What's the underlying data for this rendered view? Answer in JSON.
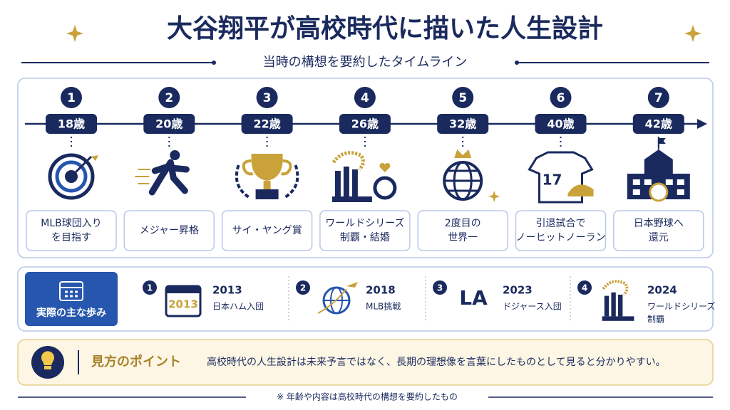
{
  "header": {
    "title": "大谷翔平が高校時代に描いた人生設計",
    "subtitle": "当時の構想を要約したタイムライン"
  },
  "timeline": {
    "steps": [
      {
        "number": 1,
        "age": "18歳",
        "label": [
          "MLB球団入り",
          "を目指す"
        ]
      },
      {
        "number": 2,
        "age": "20歳",
        "label": [
          "メジャー昇格"
        ]
      },
      {
        "number": 3,
        "age": "22歳",
        "label": [
          "サイ・ヤング賞"
        ]
      },
      {
        "number": 4,
        "age": "26歳",
        "label": [
          "ワールドシリーズ",
          "制覇・結婚"
        ]
      },
      {
        "number": 5,
        "age": "32歳",
        "label": [
          "2度目の",
          "世界一"
        ]
      },
      {
        "number": 6,
        "age": "40歳",
        "label": [
          "引退試合で",
          "ノーヒットノーラン"
        ],
        "icon_text": "17"
      },
      {
        "number": 7,
        "age": "42歳",
        "label": [
          "日本野球へ",
          "還元"
        ]
      }
    ]
  },
  "actual": {
    "title": "実際の主な歩み",
    "items": [
      {
        "number": 1,
        "year": "2013",
        "text": [
          "日本ハム入団"
        ],
        "icon_text": "2013"
      },
      {
        "number": 2,
        "year": "2018",
        "text": [
          "MLB挑戦"
        ]
      },
      {
        "number": 3,
        "year": "2023",
        "text": [
          "ドジャース入団"
        ],
        "icon_text": "LA"
      },
      {
        "number": 4,
        "year": "2024",
        "text": [
          "ワールドシリーズ",
          "制覇"
        ]
      }
    ]
  },
  "tip": {
    "title": "見方のポイント",
    "text": "高校時代の人生設計は未来予言ではなく、長期の理想像を言葉にしたものとして見ると分かりやすい。"
  },
  "footnote": "※ 年齢や内容は高校時代の構想を要約したもの"
}
